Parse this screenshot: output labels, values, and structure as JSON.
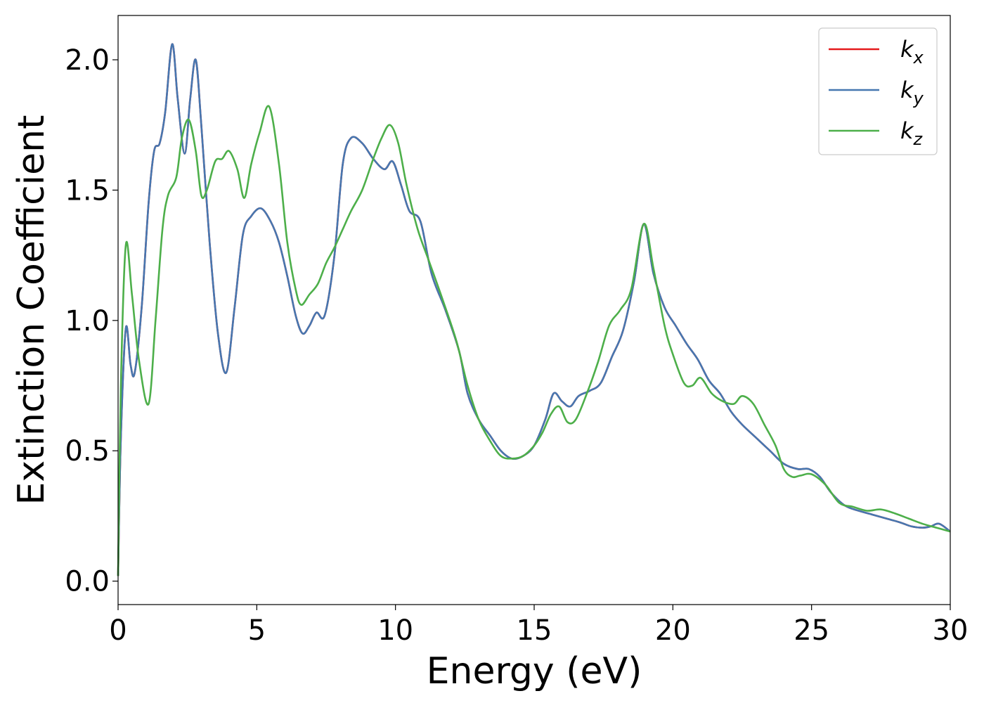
{
  "chart_data": {
    "type": "line",
    "title": "",
    "xlabel": "Energy (eV)",
    "ylabel": "Extinction Coefficient",
    "xlim": [
      0,
      30
    ],
    "ylim": [
      -0.09,
      2.17
    ],
    "xticks": [
      0,
      5,
      10,
      15,
      20,
      25,
      30
    ],
    "xtick_labels": [
      "0",
      "5",
      "10",
      "15",
      "20",
      "25",
      "30"
    ],
    "yticks": [
      0.0,
      0.5,
      1.0,
      1.5,
      2.0
    ],
    "ytick_labels": [
      "0.0",
      "0.5",
      "1.0",
      "1.5",
      "2.0"
    ],
    "grid": false,
    "legend_position": "top-right",
    "series": [
      {
        "name": "k_x",
        "legend_base": "k",
        "legend_sub": "x",
        "color": "#e41a1c",
        "x": [
          0,
          0.1,
          0.28,
          0.45,
          0.6,
          0.85,
          1.1,
          1.3,
          1.5,
          1.7,
          1.95,
          2.15,
          2.4,
          2.6,
          2.8,
          3.0,
          3.3,
          3.6,
          3.9,
          4.2,
          4.5,
          4.8,
          5.15,
          5.5,
          5.8,
          6.1,
          6.4,
          6.65,
          6.9,
          7.15,
          7.45,
          7.8,
          8.1,
          8.4,
          8.8,
          9.2,
          9.6,
          9.9,
          10.2,
          10.5,
          10.9,
          11.3,
          11.8,
          12.3,
          12.6,
          13.0,
          13.4,
          13.8,
          14.2,
          14.6,
          15.0,
          15.4,
          15.7,
          16.0,
          16.3,
          16.6,
          17.0,
          17.4,
          17.8,
          18.2,
          18.6,
          18.95,
          19.3,
          19.7,
          20.1,
          20.5,
          20.9,
          21.3,
          21.7,
          22.1,
          22.5,
          23.0,
          23.5,
          24.0,
          24.5,
          24.9,
          25.3,
          25.7,
          26.2,
          26.7,
          27.2,
          27.7,
          28.2,
          28.6,
          29.0,
          29.3,
          29.6,
          30.0
        ],
        "y": [
          0.02,
          0.55,
          0.97,
          0.83,
          0.8,
          1.05,
          1.45,
          1.65,
          1.68,
          1.8,
          2.06,
          1.85,
          1.64,
          1.85,
          2.0,
          1.75,
          1.3,
          0.95,
          0.8,
          1.05,
          1.33,
          1.4,
          1.43,
          1.38,
          1.3,
          1.17,
          1.02,
          0.95,
          0.98,
          1.03,
          1.02,
          1.25,
          1.6,
          1.7,
          1.68,
          1.62,
          1.58,
          1.61,
          1.52,
          1.42,
          1.38,
          1.18,
          1.04,
          0.88,
          0.72,
          0.62,
          0.56,
          0.5,
          0.47,
          0.48,
          0.52,
          0.62,
          0.72,
          0.69,
          0.67,
          0.71,
          0.73,
          0.76,
          0.86,
          0.96,
          1.15,
          1.37,
          1.18,
          1.05,
          0.98,
          0.91,
          0.85,
          0.77,
          0.72,
          0.65,
          0.6,
          0.55,
          0.5,
          0.45,
          0.43,
          0.43,
          0.4,
          0.34,
          0.29,
          0.27,
          0.255,
          0.24,
          0.225,
          0.21,
          0.205,
          0.21,
          0.22,
          0.19
        ]
      },
      {
        "name": "k_y",
        "legend_base": "k",
        "legend_sub": "y",
        "color": "#4677b0",
        "x": [
          0,
          0.1,
          0.28,
          0.45,
          0.6,
          0.85,
          1.1,
          1.3,
          1.5,
          1.7,
          1.95,
          2.15,
          2.4,
          2.6,
          2.8,
          3.0,
          3.3,
          3.6,
          3.9,
          4.2,
          4.5,
          4.8,
          5.15,
          5.5,
          5.8,
          6.1,
          6.4,
          6.65,
          6.9,
          7.15,
          7.45,
          7.8,
          8.1,
          8.4,
          8.8,
          9.2,
          9.6,
          9.9,
          10.2,
          10.5,
          10.9,
          11.3,
          11.8,
          12.3,
          12.6,
          13.0,
          13.4,
          13.8,
          14.2,
          14.6,
          15.0,
          15.4,
          15.7,
          16.0,
          16.3,
          16.6,
          17.0,
          17.4,
          17.8,
          18.2,
          18.6,
          18.95,
          19.3,
          19.7,
          20.1,
          20.5,
          20.9,
          21.3,
          21.7,
          22.1,
          22.5,
          23.0,
          23.5,
          24.0,
          24.5,
          24.9,
          25.3,
          25.7,
          26.2,
          26.7,
          27.2,
          27.7,
          28.2,
          28.6,
          29.0,
          29.3,
          29.6,
          30.0
        ],
        "y": [
          0.02,
          0.55,
          0.97,
          0.83,
          0.8,
          1.05,
          1.45,
          1.65,
          1.68,
          1.8,
          2.06,
          1.85,
          1.64,
          1.85,
          2.0,
          1.75,
          1.3,
          0.95,
          0.8,
          1.05,
          1.33,
          1.4,
          1.43,
          1.38,
          1.3,
          1.17,
          1.02,
          0.95,
          0.98,
          1.03,
          1.02,
          1.25,
          1.6,
          1.7,
          1.68,
          1.62,
          1.58,
          1.61,
          1.52,
          1.42,
          1.38,
          1.18,
          1.04,
          0.88,
          0.72,
          0.62,
          0.56,
          0.5,
          0.47,
          0.48,
          0.52,
          0.62,
          0.72,
          0.69,
          0.67,
          0.71,
          0.73,
          0.76,
          0.86,
          0.96,
          1.15,
          1.37,
          1.18,
          1.05,
          0.98,
          0.91,
          0.85,
          0.77,
          0.72,
          0.65,
          0.6,
          0.55,
          0.5,
          0.45,
          0.43,
          0.43,
          0.4,
          0.34,
          0.29,
          0.27,
          0.255,
          0.24,
          0.225,
          0.21,
          0.205,
          0.21,
          0.22,
          0.19
        ]
      },
      {
        "name": "k_z",
        "legend_base": "k",
        "legend_sub": "z",
        "color": "#4daf4a",
        "x": [
          0,
          0.1,
          0.28,
          0.5,
          0.75,
          1.1,
          1.35,
          1.6,
          1.8,
          2.1,
          2.3,
          2.55,
          2.8,
          3.0,
          3.2,
          3.5,
          3.75,
          4.0,
          4.3,
          4.55,
          4.8,
          5.1,
          5.45,
          5.8,
          6.1,
          6.4,
          6.6,
          6.9,
          7.2,
          7.5,
          7.8,
          8.1,
          8.4,
          8.8,
          9.2,
          9.5,
          9.8,
          10.1,
          10.4,
          10.8,
          11.2,
          11.7,
          12.2,
          12.6,
          13.0,
          13.4,
          13.8,
          14.2,
          14.6,
          15.0,
          15.3,
          15.6,
          15.9,
          16.2,
          16.5,
          16.9,
          17.3,
          17.7,
          18.1,
          18.5,
          18.95,
          19.3,
          19.7,
          20.0,
          20.4,
          20.7,
          21.0,
          21.4,
          21.8,
          22.2,
          22.5,
          22.9,
          23.3,
          23.7,
          24.0,
          24.3,
          24.6,
          25.0,
          25.5,
          26.0,
          26.5,
          27.0,
          27.5,
          28.0,
          28.5,
          29.0,
          29.5,
          30.0
        ],
        "y": [
          0.02,
          0.75,
          1.29,
          1.1,
          0.85,
          0.68,
          1.0,
          1.35,
          1.48,
          1.55,
          1.7,
          1.77,
          1.65,
          1.48,
          1.5,
          1.61,
          1.62,
          1.65,
          1.58,
          1.47,
          1.6,
          1.72,
          1.82,
          1.6,
          1.3,
          1.12,
          1.06,
          1.1,
          1.14,
          1.22,
          1.28,
          1.35,
          1.42,
          1.5,
          1.62,
          1.7,
          1.75,
          1.68,
          1.52,
          1.35,
          1.23,
          1.08,
          0.92,
          0.75,
          0.62,
          0.54,
          0.48,
          0.47,
          0.48,
          0.52,
          0.57,
          0.64,
          0.67,
          0.61,
          0.62,
          0.72,
          0.84,
          0.98,
          1.04,
          1.12,
          1.37,
          1.2,
          0.98,
          0.87,
          0.76,
          0.75,
          0.78,
          0.72,
          0.69,
          0.68,
          0.71,
          0.68,
          0.6,
          0.52,
          0.43,
          0.4,
          0.405,
          0.41,
          0.37,
          0.3,
          0.285,
          0.27,
          0.275,
          0.26,
          0.24,
          0.22,
          0.205,
          0.19
        ]
      }
    ]
  }
}
